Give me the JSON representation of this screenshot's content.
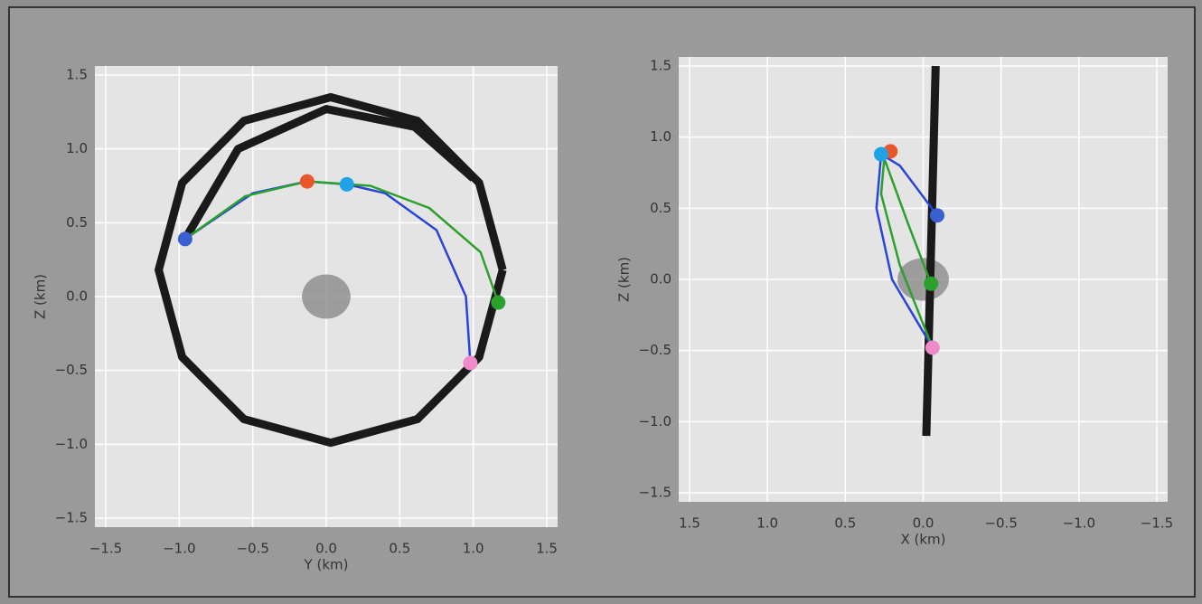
{
  "chart_data": [
    {
      "type": "line",
      "x_label": "Y (km)",
      "y_label": "Z (km)",
      "xlim": [
        -1.5,
        1.5
      ],
      "ylim": [
        -1.5,
        1.5
      ],
      "xticks": [
        {
          "value": -1.5,
          "label": "−1.5"
        },
        {
          "value": -1.0,
          "label": "−1.0"
        },
        {
          "value": -0.5,
          "label": "−0.5"
        },
        {
          "value": 0,
          "label": "0.0"
        },
        0.5,
        {
          "value": 1.0,
          "label": "1.0"
        },
        1.5
      ],
      "yticks": [
        {
          "value": -1.5,
          "label": "−1.5"
        },
        {
          "value": -1.0,
          "label": "−1.0"
        },
        {
          "value": -0.5,
          "label": "−0.5"
        },
        {
          "value": 0,
          "label": "0.0"
        },
        0.5,
        {
          "value": 1.0,
          "label": "1.0"
        },
        1.5
      ],
      "grid": true,
      "series": [
        {
          "style": "line",
          "color": "#1a1a1a",
          "x": [
            1.2,
            1.04,
            0.62,
            0.03,
            -0.56,
            -0.98,
            -1.14,
            -0.98,
            -0.56,
            0.03,
            0.62,
            1.04,
            1.2
          ],
          "values": [
            0.18,
            0.77,
            1.19,
            1.35,
            1.19,
            0.77,
            0.18,
            -0.41,
            -0.83,
            -0.99,
            -0.83,
            -0.41,
            0.18
          ]
        },
        {
          "style": "line",
          "color": "#1a1a1a",
          "x": [
            -0.96,
            -0.6,
            0.0,
            0.6,
            1.0
          ],
          "values": [
            0.39,
            1.0,
            1.27,
            1.15,
            0.8
          ]
        },
        {
          "style": "line",
          "color": "#2a44d8",
          "x": [
            0.98,
            0.95,
            0.75,
            0.4,
            0.14,
            -0.13,
            -0.5,
            -0.96
          ],
          "values": [
            -0.45,
            0.0,
            0.45,
            0.7,
            0.76,
            0.78,
            0.7,
            0.39
          ]
        },
        {
          "style": "line",
          "color": "#2ca02c",
          "x": [
            1.17,
            1.05,
            0.7,
            0.3,
            -0.13,
            -0.55,
            -0.96
          ],
          "values": [
            -0.04,
            0.3,
            0.6,
            0.75,
            0.78,
            0.68,
            0.39
          ]
        },
        {
          "style": "marker",
          "color": "#e8562a",
          "x": [
            -0.13
          ],
          "values": [
            0.78
          ]
        },
        {
          "style": "marker",
          "color": "#1fa3e6",
          "x": [
            0.14
          ],
          "values": [
            0.76
          ]
        },
        {
          "style": "marker",
          "color": "#3a5fd0",
          "x": [
            -0.96
          ],
          "values": [
            0.39
          ]
        },
        {
          "style": "marker",
          "color": "#2ca02c",
          "x": [
            1.17
          ],
          "values": [
            -0.04
          ]
        },
        {
          "style": "marker",
          "color": "#f08ac8",
          "x": [
            0.98
          ],
          "values": [
            -0.45
          ]
        }
      ]
    },
    {
      "type": "line",
      "x_label": "X (km)",
      "y_label": "Z (km)",
      "xlim": [
        1.5,
        -1.5
      ],
      "ylim": [
        -1.5,
        1.5
      ],
      "xticks": [
        1.5,
        {
          "value": 1.0,
          "label": "1.0"
        },
        0.5,
        {
          "value": 0,
          "label": "0.0"
        },
        {
          "value": -0.5,
          "label": "−0.5"
        },
        {
          "value": -1.0,
          "label": "−1.0"
        },
        {
          "value": -1.5,
          "label": "−1.5"
        }
      ],
      "yticks": [
        {
          "value": -1.5,
          "label": "−1.5"
        },
        {
          "value": -1.0,
          "label": "−1.0"
        },
        {
          "value": -0.5,
          "label": "−0.5"
        },
        {
          "value": 0,
          "label": "0.0"
        },
        0.5,
        {
          "value": 1.0,
          "label": "1.0"
        },
        1.5
      ],
      "grid": true,
      "series": [
        {
          "style": "line",
          "color": "#1a1a1a",
          "x": [
            -0.08,
            -0.05,
            -0.02
          ],
          "values": [
            1.5,
            0.2,
            -1.1
          ]
        },
        {
          "style": "line",
          "color": "#2a44d8",
          "x": [
            -0.09,
            0.15,
            0.27,
            0.3,
            0.2,
            -0.06
          ],
          "values": [
            0.45,
            0.8,
            0.88,
            0.5,
            0.0,
            -0.48
          ]
        },
        {
          "style": "line",
          "color": "#2ca02c",
          "x": [
            -0.05,
            0.1,
            0.25,
            0.27,
            0.15,
            -0.06
          ],
          "values": [
            -0.03,
            0.4,
            0.85,
            0.6,
            0.1,
            -0.48
          ]
        },
        {
          "style": "marker",
          "color": "#e8562a",
          "x": [
            0.21
          ],
          "values": [
            0.9
          ]
        },
        {
          "style": "marker",
          "color": "#1fa3e6",
          "x": [
            0.27
          ],
          "values": [
            0.88
          ]
        },
        {
          "style": "marker",
          "color": "#3a5fd0",
          "x": [
            -0.09
          ],
          "values": [
            0.45
          ]
        },
        {
          "style": "marker",
          "color": "#2ca02c",
          "x": [
            -0.05
          ],
          "values": [
            -0.03
          ]
        },
        {
          "style": "marker",
          "color": "#f08ac8",
          "x": [
            -0.06
          ],
          "values": [
            -0.48
          ]
        }
      ]
    }
  ]
}
